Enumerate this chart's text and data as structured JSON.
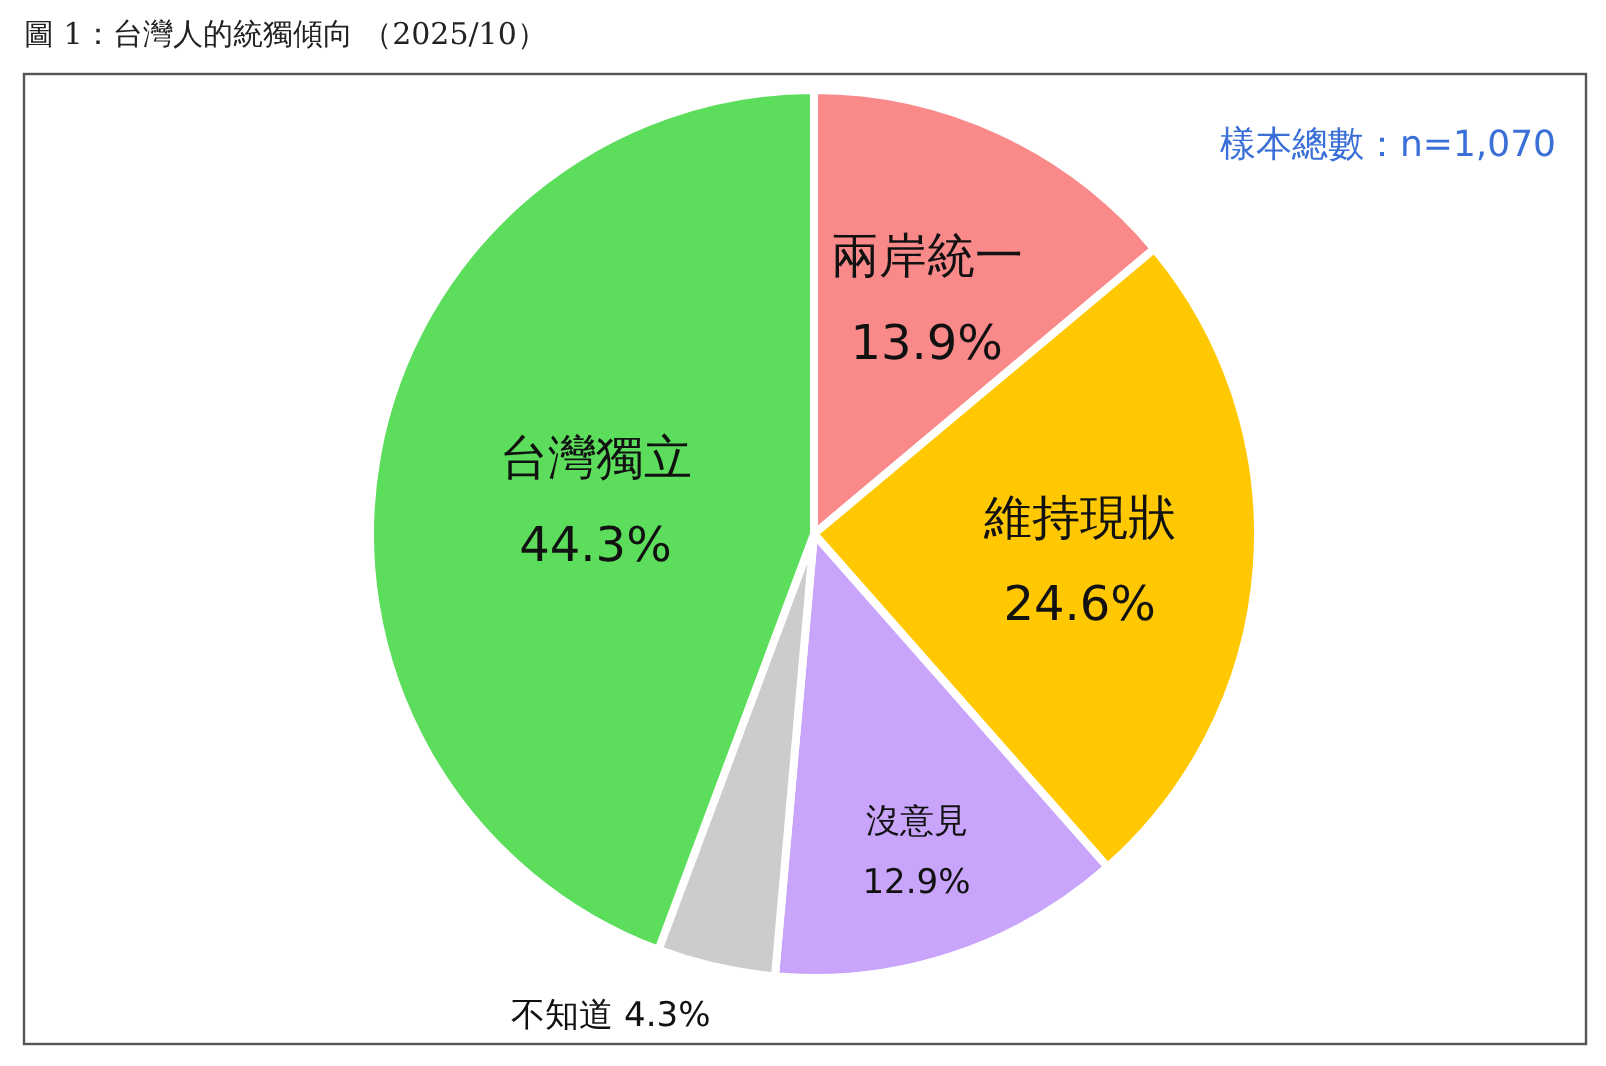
{
  "chart_data": {
    "type": "pie",
    "title": "圖 1：台灣人的統獨傾向 （2025/10）",
    "categories": [
      "兩岸統一",
      "維持現狀",
      "沒意見",
      "不知道",
      "台灣獨立"
    ],
    "values": [
      13.9,
      24.6,
      12.9,
      4.3,
      44.3
    ],
    "value_labels": [
      "13.9%",
      "24.6%",
      "12.9%",
      "4.3%",
      "44.3%"
    ],
    "colors": [
      "#fa8a8a",
      "#ffc800",
      "#c8a4fb",
      "#cccccc",
      "#5cdd5c"
    ],
    "annotations": [
      "樣本總數：n=1,070"
    ]
  }
}
